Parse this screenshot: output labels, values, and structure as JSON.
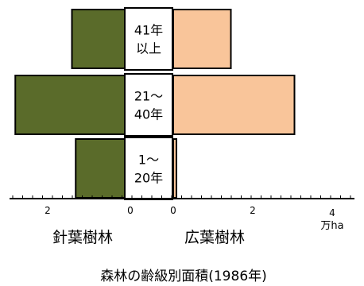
{
  "chart_data": {
    "type": "bar",
    "orientation": "horizontal-butterfly",
    "title": "森林の齢級別面積(1986年)",
    "unit": "万ha",
    "categories": [
      "41年\n以上",
      "21～\n40年",
      "1～\n20年"
    ],
    "series": [
      {
        "name": "針葉樹林",
        "side": "left",
        "color": "#5a6b2a",
        "values": [
          1.4,
          2.9,
          1.3
        ]
      },
      {
        "name": "広葉樹林",
        "side": "right",
        "color": "#f9c59a",
        "values": [
          1.45,
          3.05,
          0.08
        ]
      }
    ],
    "left_ticks": [
      "2",
      "0"
    ],
    "right_ticks": [
      "0",
      "2",
      "4"
    ],
    "right_xlim": [
      0,
      4
    ],
    "left_xlim": [
      0,
      2
    ]
  }
}
